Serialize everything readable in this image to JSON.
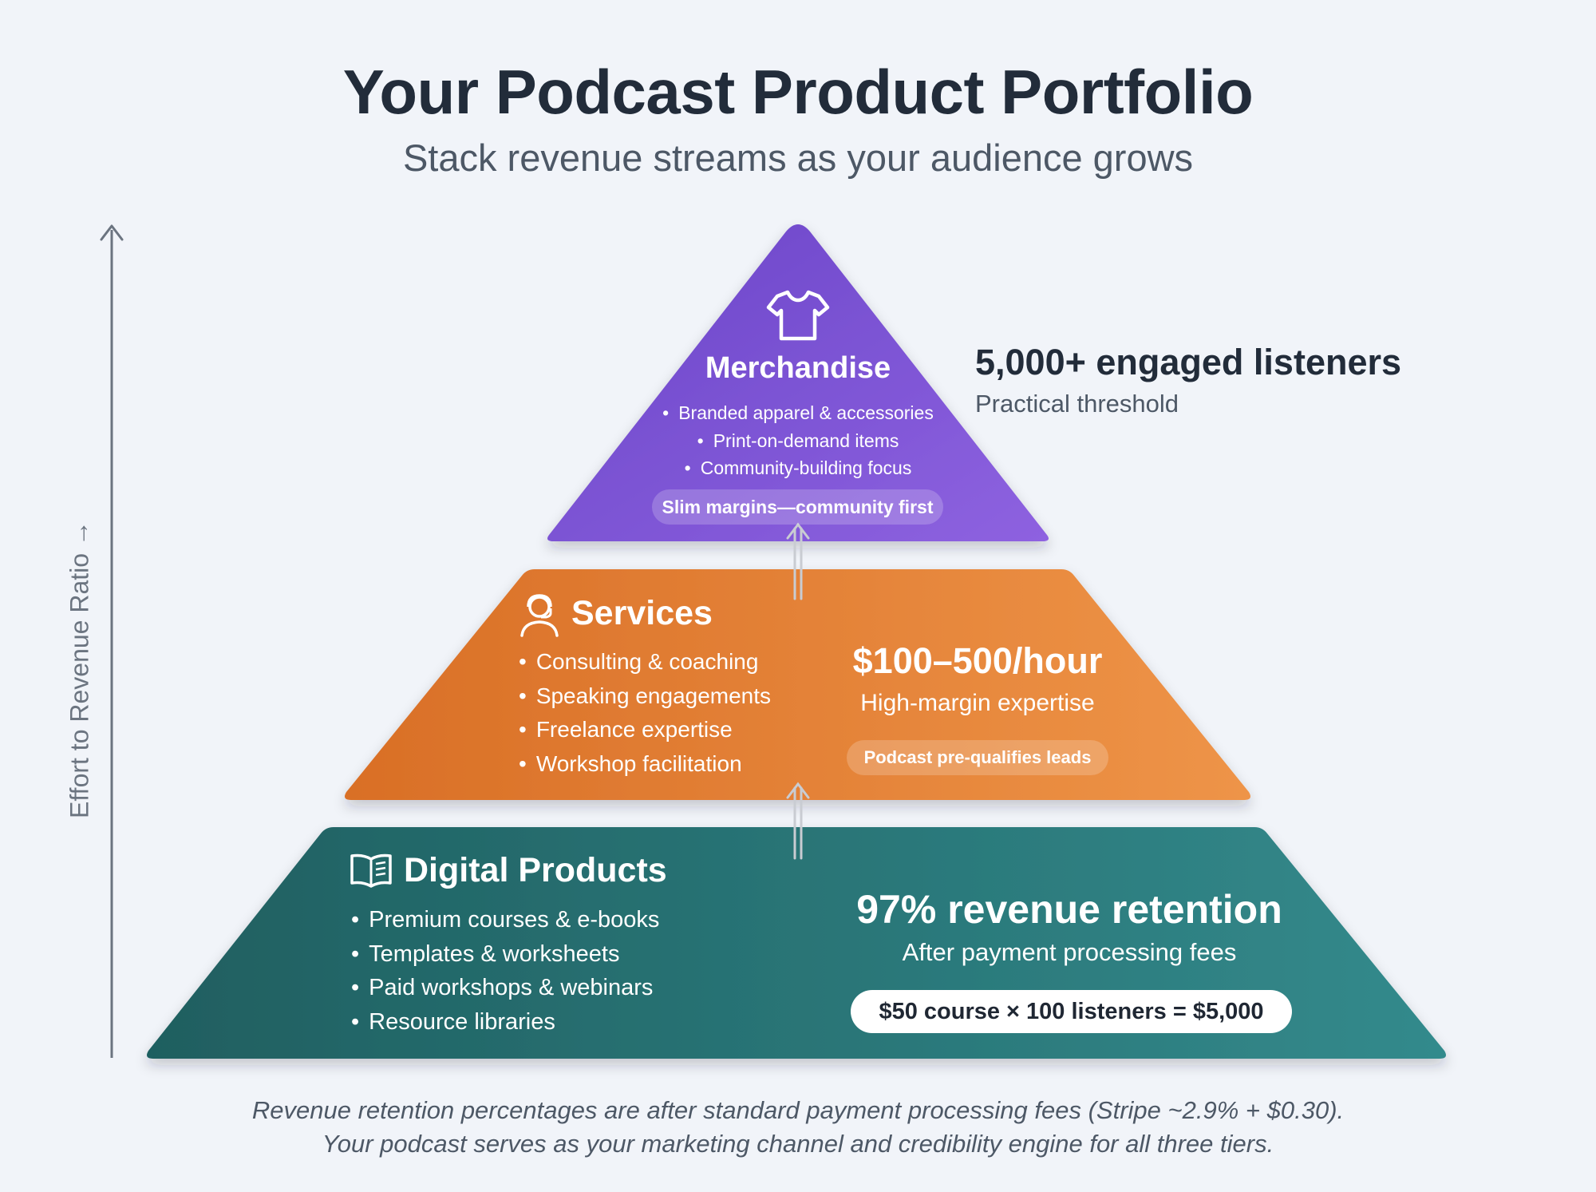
{
  "title": "Your Podcast Product Portfolio",
  "subtitle": "Stack revenue streams as your audience grows",
  "axis": {
    "label": "Effort to Revenue Ratio →"
  },
  "colors": {
    "merchandise": "#7c54d6",
    "services": "#e37f32",
    "digital_products": "#2a7a7c",
    "background": "#f1f4f9",
    "text_dark": "#222c3a"
  },
  "tiers": {
    "merchandise": {
      "icon": "t-shirt-icon",
      "title": "Merchandise",
      "bullets": [
        "Branded apparel & accessories",
        "Print-on-demand items",
        "Community-building focus"
      ],
      "pill": "Slim margins—community first"
    },
    "services": {
      "icon": "headset-person-icon",
      "title": "Services",
      "bullets": [
        "Consulting & coaching",
        "Speaking engagements",
        "Freelance expertise",
        "Workshop facilitation"
      ],
      "rate": "$100–500/hour",
      "rate_label": "High-margin expertise",
      "pill": "Podcast pre-qualifies leads"
    },
    "digital_products": {
      "icon": "open-book-icon",
      "title": "Digital Products",
      "bullets": [
        "Premium courses & e-books",
        "Templates & worksheets",
        "Paid workshops & webinars",
        "Resource libraries"
      ],
      "retention": "97% revenue retention",
      "retention_label": "After payment processing fees",
      "pill": "$50 course × 100 listeners = $5,000"
    }
  },
  "threshold": {
    "value": "5,000+ engaged listeners",
    "label": "Practical threshold"
  },
  "footnote": {
    "line1": "Revenue retention percentages are after standard payment processing fees (Stripe ~2.9% + $0.30).",
    "line2": "Your podcast serves as your marketing channel and credibility engine for all three tiers."
  }
}
